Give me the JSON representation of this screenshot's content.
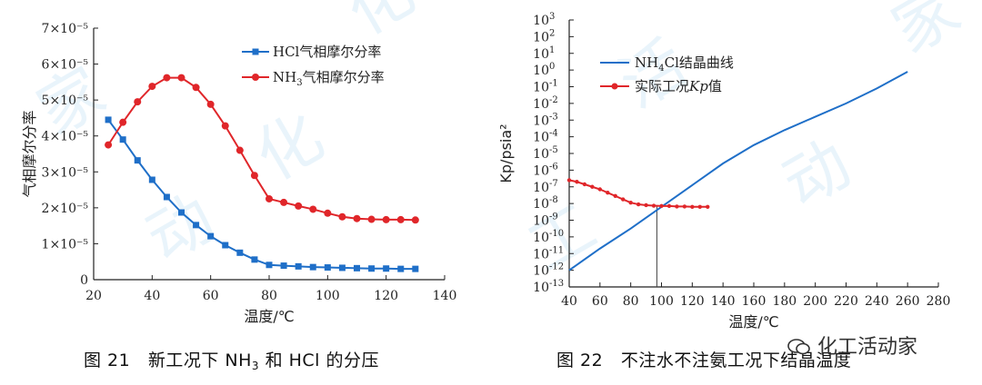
{
  "watermark": "化工活动家",
  "colors": {
    "blue": "#1f6fc8",
    "red": "#e0262a",
    "axis": "#222222",
    "watermark": "#cfe6f7"
  },
  "left_caption": {
    "fig": "图 21",
    "text_a": "新工况下 NH",
    "sub": "3",
    "text_b": " 和 HCl 的分压"
  },
  "right_caption": {
    "fig": "图 22",
    "text": "不注水不注氨工况下结晶温度"
  },
  "chart_data": [
    {
      "type": "line",
      "title": "",
      "xlabel": "温度/℃",
      "ylabel": "气相摩尔分率",
      "xlim": [
        20,
        140
      ],
      "ylim": [
        0,
        7e-05
      ],
      "x_ticks": [
        "20",
        "40",
        "60",
        "80",
        "100",
        "120",
        "140"
      ],
      "y_ticks": [
        "0",
        "1×10⁻⁵",
        "2×10⁻⁵",
        "3×10⁻⁵",
        "4×10⁻⁵",
        "5×10⁻⁵",
        "6×10⁻⁵",
        "7×10⁻⁵"
      ],
      "legend_position": "top-right",
      "x": [
        25,
        30,
        35,
        40,
        45,
        50,
        55,
        60,
        65,
        70,
        75,
        80,
        85,
        90,
        95,
        100,
        105,
        110,
        115,
        120,
        125,
        130
      ],
      "series": [
        {
          "name": "HCl气相摩尔分率",
          "marker": "square",
          "color": "#1f6fc8",
          "values": [
            4.45e-05,
            3.9e-05,
            3.32e-05,
            2.78e-05,
            2.3e-05,
            1.87e-05,
            1.52e-05,
            1.21e-05,
            9.6e-06,
            7.5e-06,
            5.6e-06,
            4.1e-06,
            3.9e-06,
            3.7e-06,
            3.5e-06,
            3.4e-06,
            3.3e-06,
            3.2e-06,
            3.1e-06,
            3.1e-06,
            3e-06,
            3e-06
          ]
        },
        {
          "name": "NH3气相摩尔分率",
          "name_parts": [
            "NH",
            "3",
            "气相摩尔分率"
          ],
          "marker": "circle",
          "color": "#e0262a",
          "values": [
            3.75e-05,
            4.38e-05,
            4.95e-05,
            5.38e-05,
            5.62e-05,
            5.62e-05,
            5.35e-05,
            4.88e-05,
            4.28e-05,
            3.6e-05,
            2.9e-05,
            2.25e-05,
            2.15e-05,
            2.05e-05,
            1.96e-05,
            1.85e-05,
            1.75e-05,
            1.7e-05,
            1.68e-05,
            1.67e-05,
            1.67e-05,
            1.66e-05
          ]
        }
      ]
    },
    {
      "type": "line",
      "title": "",
      "xlabel": "温度/℃",
      "ylabel": "Kp/psia²",
      "xlim": [
        40,
        280
      ],
      "ylim_log10": [
        -13,
        3
      ],
      "log_y": true,
      "x_ticks": [
        "40",
        "60",
        "80",
        "100",
        "120",
        "140",
        "160",
        "180",
        "200",
        "220",
        "240",
        "260",
        "280"
      ],
      "y_tick_exponents": [
        "3",
        "2",
        "1",
        "0",
        "-1",
        "-2",
        "-3",
        "-4",
        "-5",
        "-6",
        "-7",
        "-8",
        "-9",
        "-10",
        "-11",
        "-12",
        "-13"
      ],
      "legend_position": "top-right",
      "series": [
        {
          "name": "NH4Cl结晶曲线",
          "name_parts": [
            "NH",
            "4",
            "Cl结晶曲线"
          ],
          "color": "#1f6fc8",
          "x": [
            40,
            60,
            80,
            100,
            120,
            140,
            160,
            180,
            200,
            220,
            240,
            260
          ],
          "log10_values": [
            -12.0,
            -10.7,
            -9.5,
            -8.2,
            -6.9,
            -5.6,
            -4.5,
            -3.6,
            -2.8,
            -2.0,
            -1.1,
            -0.1
          ]
        },
        {
          "name": "实际工况Kp值",
          "name_parts": [
            "实际工况",
            "Kp",
            "值"
          ],
          "marker": "circle",
          "color": "#e0262a",
          "x": [
            40,
            45,
            50,
            55,
            60,
            65,
            70,
            75,
            80,
            85,
            90,
            95,
            100,
            105,
            110,
            115,
            120,
            125,
            130
          ],
          "log10_values": [
            -6.6,
            -6.7,
            -6.85,
            -7.0,
            -7.15,
            -7.35,
            -7.55,
            -7.75,
            -7.95,
            -8.05,
            -8.1,
            -8.13,
            -8.15,
            -8.15,
            -8.18,
            -8.18,
            -8.2,
            -8.2,
            -8.2
          ]
        }
      ],
      "annotations": [
        {
          "type": "vertical-line",
          "x": 97
        }
      ]
    }
  ]
}
